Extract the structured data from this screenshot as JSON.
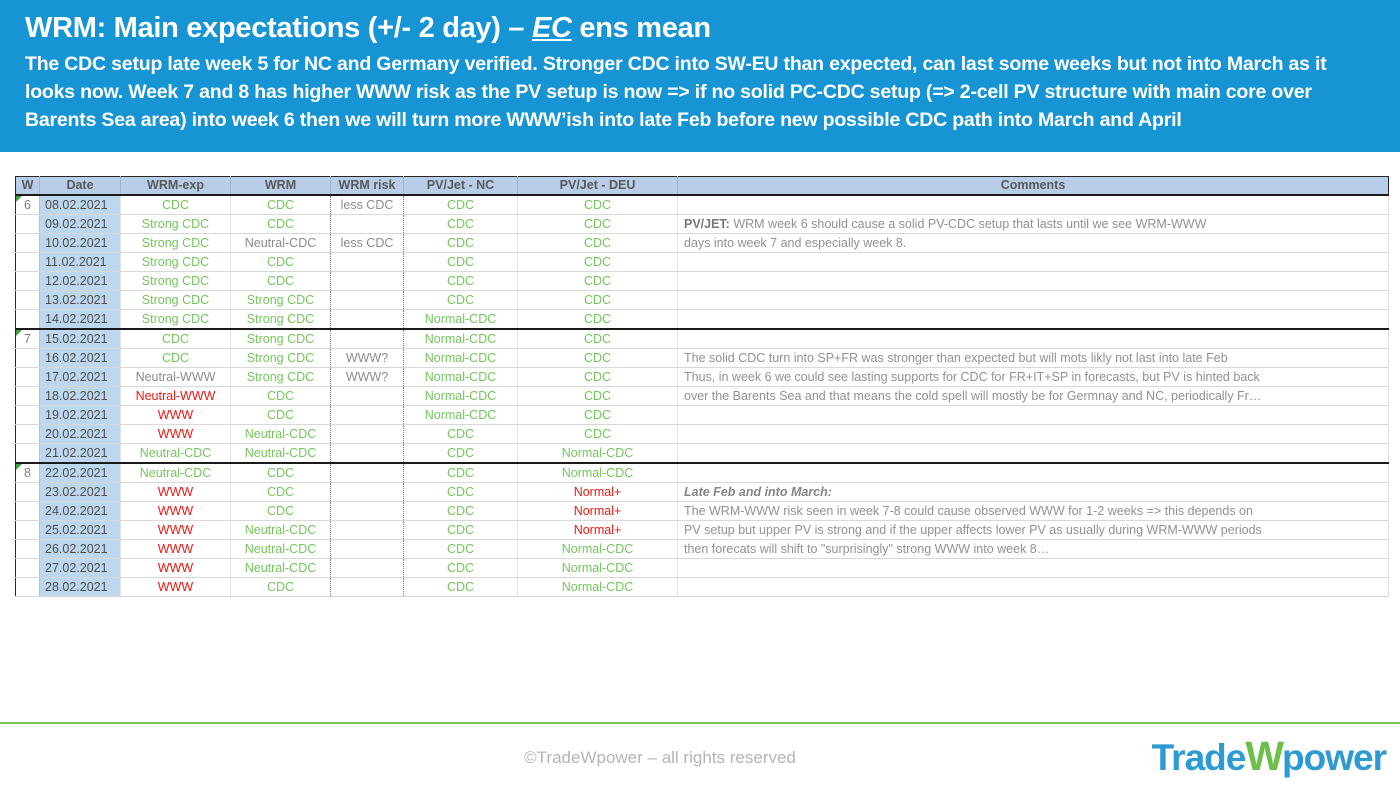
{
  "slide": {
    "title": {
      "prefix": "WRM: Main expectations (+/- 2 day) – ",
      "emphasis": "EC",
      "suffix": " ens mean"
    },
    "subtitle": "The CDC setup late week 5 for NC and Germany verified. Stronger CDC into SW-EU than expected, can last some weeks but not into March as it looks now. Week 7 and 8 has higher WWW risk as the PV setup is now => if no solid PC-CDC setup (=> 2-cell PV structure with main core over Barents Sea area) into week 6 then we will turn more WWW’ish into late Feb before new possible CDC path into March and April"
  },
  "theme": {
    "topbar_bg": "#1794d3",
    "header_fill": "#b8cee8",
    "date_fill": "#bdd7ee",
    "green": "#74c65c",
    "red": "#ee1911",
    "gray": "#8c8c8c",
    "accent_line": "#7cc550",
    "logo_blue": "#2d9ad3",
    "logo_green": "#6cc04a"
  },
  "table": {
    "columns": [
      "W",
      "Date",
      "WRM-exp",
      "WRM",
      "WRM risk",
      "PV/Jet - NC",
      "PV/Jet - DEU",
      "Comments"
    ],
    "rows": [
      {
        "w": "6",
        "date": "08.02.2021",
        "cells": [
          [
            "CDC",
            "green"
          ],
          [
            "CDC",
            "green"
          ],
          [
            "less CDC",
            "gray"
          ],
          [
            "CDC",
            "green"
          ],
          [
            "CDC",
            "green"
          ]
        ],
        "comment": {
          "label": "",
          "text": "",
          "style": "normal"
        }
      },
      {
        "w": "",
        "date": "09.02.2021",
        "cells": [
          [
            "Strong CDC",
            "green"
          ],
          [
            "CDC",
            "green"
          ],
          [
            "",
            ""
          ],
          [
            "CDC",
            "green"
          ],
          [
            "CDC",
            "green"
          ]
        ],
        "comment": {
          "label": "PV/JET:",
          "text": " WRM week 6 should cause a solid PV-CDC setup that lasts until we see WRM-WWW",
          "style": "bold-label"
        }
      },
      {
        "w": "",
        "date": "10.02.2021",
        "cells": [
          [
            "Strong CDC",
            "green"
          ],
          [
            "Neutral-CDC",
            "gray"
          ],
          [
            "less CDC",
            "gray"
          ],
          [
            "CDC",
            "green"
          ],
          [
            "CDC",
            "green"
          ]
        ],
        "comment": {
          "label": "",
          "text": "days into week 7 and especially week 8.",
          "style": "normal"
        }
      },
      {
        "w": "",
        "date": "11.02.2021",
        "cells": [
          [
            "Strong CDC",
            "green"
          ],
          [
            "CDC",
            "green"
          ],
          [
            "",
            ""
          ],
          [
            "CDC",
            "green"
          ],
          [
            "CDC",
            "green"
          ]
        ],
        "comment": {
          "label": "",
          "text": "",
          "style": "normal"
        }
      },
      {
        "w": "",
        "date": "12.02.2021",
        "cells": [
          [
            "Strong CDC",
            "green"
          ],
          [
            "CDC",
            "green"
          ],
          [
            "",
            ""
          ],
          [
            "CDC",
            "green"
          ],
          [
            "CDC",
            "green"
          ]
        ],
        "comment": {
          "label": "",
          "text": "",
          "style": "normal"
        }
      },
      {
        "w": "",
        "date": "13.02.2021",
        "cells": [
          [
            "Strong CDC",
            "green"
          ],
          [
            "Strong CDC",
            "green"
          ],
          [
            "",
            ""
          ],
          [
            "CDC",
            "green"
          ],
          [
            "CDC",
            "green"
          ]
        ],
        "comment": {
          "label": "",
          "text": "",
          "style": "normal"
        }
      },
      {
        "w": "",
        "date": "14.02.2021",
        "cells": [
          [
            "Strong CDC",
            "green"
          ],
          [
            "Strong CDC",
            "green"
          ],
          [
            "",
            ""
          ],
          [
            "Normal-CDC",
            "green"
          ],
          [
            "CDC",
            "green"
          ]
        ],
        "comment": {
          "label": "",
          "text": "",
          "style": "normal"
        }
      },
      {
        "w": "7",
        "date": "15.02.2021",
        "cells": [
          [
            "CDC",
            "green"
          ],
          [
            "Strong CDC",
            "green"
          ],
          [
            "",
            ""
          ],
          [
            "Normal-CDC",
            "green"
          ],
          [
            "CDC",
            "green"
          ]
        ],
        "comment": {
          "label": "",
          "text": "",
          "style": "normal"
        }
      },
      {
        "w": "",
        "date": "16.02.2021",
        "cells": [
          [
            "CDC",
            "green"
          ],
          [
            "Strong CDC",
            "green"
          ],
          [
            "WWW?",
            "gray"
          ],
          [
            "Normal-CDC",
            "green"
          ],
          [
            "CDC",
            "green"
          ]
        ],
        "comment": {
          "label": "",
          "text": "The solid CDC turn into SP+FR was stronger than expected but will mots likly not last into late Feb",
          "style": "normal"
        }
      },
      {
        "w": "",
        "date": "17.02.2021",
        "cells": [
          [
            "Neutral-WWW",
            "gray"
          ],
          [
            "Strong CDC",
            "green"
          ],
          [
            "WWW?",
            "gray"
          ],
          [
            "Normal-CDC",
            "green"
          ],
          [
            "CDC",
            "green"
          ]
        ],
        "comment": {
          "label": "",
          "text": "Thus, in week 6 we could see lasting supports for CDC for FR+IT+SP in forecasts, but PV is hinted back",
          "style": "normal"
        }
      },
      {
        "w": "",
        "date": "18.02.2021",
        "cells": [
          [
            "Neutral-WWW",
            "red"
          ],
          [
            "CDC",
            "green"
          ],
          [
            "",
            ""
          ],
          [
            "Normal-CDC",
            "green"
          ],
          [
            "CDC",
            "green"
          ]
        ],
        "comment": {
          "label": "",
          "text": "over the Barents Sea and that means the cold spell will mostly be for Germnay and NC, periodically Fr…",
          "style": "normal"
        }
      },
      {
        "w": "",
        "date": "19.02.2021",
        "cells": [
          [
            "WWW",
            "red"
          ],
          [
            "CDC",
            "green"
          ],
          [
            "",
            ""
          ],
          [
            "Normal-CDC",
            "green"
          ],
          [
            "CDC",
            "green"
          ]
        ],
        "comment": {
          "label": "",
          "text": "",
          "style": "normal"
        }
      },
      {
        "w": "",
        "date": "20.02.2021",
        "cells": [
          [
            "WWW",
            "red"
          ],
          [
            "Neutral-CDC",
            "green"
          ],
          [
            "",
            ""
          ],
          [
            "CDC",
            "green"
          ],
          [
            "CDC",
            "green"
          ]
        ],
        "comment": {
          "label": "",
          "text": "",
          "style": "normal"
        }
      },
      {
        "w": "",
        "date": "21.02.2021",
        "cells": [
          [
            "Neutral-CDC",
            "green"
          ],
          [
            "Neutral-CDC",
            "green"
          ],
          [
            "",
            ""
          ],
          [
            "CDC",
            "green"
          ],
          [
            "Normal-CDC",
            "green"
          ]
        ],
        "comment": {
          "label": "",
          "text": "",
          "style": "normal"
        }
      },
      {
        "w": "8",
        "date": "22.02.2021",
        "cells": [
          [
            "Neutral-CDC",
            "green"
          ],
          [
            "CDC",
            "green"
          ],
          [
            "",
            ""
          ],
          [
            "CDC",
            "green"
          ],
          [
            "Normal-CDC",
            "green"
          ]
        ],
        "comment": {
          "label": "",
          "text": "",
          "style": "normal"
        }
      },
      {
        "w": "",
        "date": "23.02.2021",
        "cells": [
          [
            "WWW",
            "red"
          ],
          [
            "CDC",
            "green"
          ],
          [
            "",
            ""
          ],
          [
            "CDC",
            "green"
          ],
          [
            "Normal+",
            "red"
          ]
        ],
        "comment": {
          "label": "",
          "text": "Late Feb and into March:",
          "style": "bold-italic"
        }
      },
      {
        "w": "",
        "date": "24.02.2021",
        "cells": [
          [
            "WWW",
            "red"
          ],
          [
            "CDC",
            "green"
          ],
          [
            "",
            ""
          ],
          [
            "CDC",
            "green"
          ],
          [
            "Normal+",
            "red"
          ]
        ],
        "comment": {
          "label": "",
          "text": "The WRM-WWW risk seen in week 7-8 could cause observed WWW for 1-2 weeks => this depends on",
          "style": "normal"
        }
      },
      {
        "w": "",
        "date": "25.02.2021",
        "cells": [
          [
            "WWW",
            "red"
          ],
          [
            "Neutral-CDC",
            "green"
          ],
          [
            "",
            ""
          ],
          [
            "CDC",
            "green"
          ],
          [
            "Normal+",
            "red"
          ]
        ],
        "comment": {
          "label": "",
          "text": "PV setup but upper PV is strong and if the upper affects lower PV as usually during WRM-WWW periods",
          "style": "normal"
        }
      },
      {
        "w": "",
        "date": "26.02.2021",
        "cells": [
          [
            "WWW",
            "red"
          ],
          [
            "Neutral-CDC",
            "green"
          ],
          [
            "",
            ""
          ],
          [
            "CDC",
            "green"
          ],
          [
            "Normal-CDC",
            "green"
          ]
        ],
        "comment": {
          "label": "",
          "text": "then forecats will shift to \"surprisingly\" strong WWW into week 8…",
          "style": "normal"
        }
      },
      {
        "w": "",
        "date": "27.02.2021",
        "cells": [
          [
            "WWW",
            "red"
          ],
          [
            "Neutral-CDC",
            "green"
          ],
          [
            "",
            ""
          ],
          [
            "CDC",
            "green"
          ],
          [
            "Normal-CDC",
            "green"
          ]
        ],
        "comment": {
          "label": "",
          "text": "",
          "style": "normal"
        }
      },
      {
        "w": "",
        "date": "28.02.2021",
        "cells": [
          [
            "WWW",
            "red"
          ],
          [
            "CDC",
            "green"
          ],
          [
            "",
            ""
          ],
          [
            "CDC",
            "green"
          ],
          [
            "Normal-CDC",
            "green"
          ]
        ],
        "comment": {
          "label": "",
          "text": "",
          "style": "normal"
        }
      }
    ]
  },
  "footer": {
    "copyright": "©TradeWpower – all rights reserved",
    "logo": {
      "part1": "Trade",
      "part2": "W",
      "part3": "power"
    }
  }
}
